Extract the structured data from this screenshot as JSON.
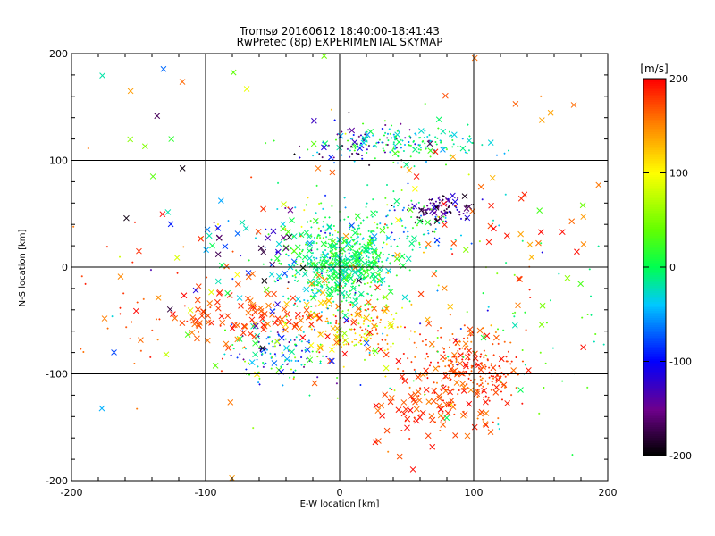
{
  "chart_data": {
    "type": "scatter",
    "title": "Tromsø 20160612 18:40:00-18:41:43",
    "subtitle": "RwPretec (8p) EXPERIMENTAL SKYMAP",
    "xlabel": "E-W location [km]",
    "ylabel": "N-S location [km]",
    "xlim": [
      -200,
      200
    ],
    "ylim": [
      -200,
      200
    ],
    "xticks": [
      "-200",
      "-100",
      "0",
      "100",
      "200"
    ],
    "yticks": [
      "-200",
      "-100",
      "0",
      "100",
      "200"
    ],
    "grid": true,
    "colorbar": {
      "label": "[m/s]",
      "min": -200,
      "max": 200,
      "ticks": [
        "200",
        "100",
        "0",
        "-100",
        "-200"
      ],
      "colormap": "rainbow (black-purple-blue-cyan-green-yellow-orange-red)"
    },
    "marker_types": [
      "x",
      "+"
    ],
    "clusters": [
      {
        "x": 0,
        "y": 5,
        "spread": [
          22,
          22
        ],
        "count": 520,
        "velocity": [
          -40,
          40
        ],
        "marker": "+"
      },
      {
        "x": 0,
        "y": 0,
        "spread": [
          14,
          14
        ],
        "count": 80,
        "velocity": [
          -30,
          20
        ],
        "marker": "x"
      },
      {
        "x": 75,
        "y": 55,
        "spread": [
          12,
          7
        ],
        "count": 110,
        "velocity": [
          -200,
          -110
        ],
        "marker": "+"
      },
      {
        "x": 50,
        "y": 115,
        "spread": [
          28,
          8
        ],
        "count": 170,
        "velocity": [
          -60,
          40
        ],
        "marker": "+"
      },
      {
        "x": 15,
        "y": 115,
        "spread": [
          20,
          10
        ],
        "count": 60,
        "velocity": [
          -200,
          -90
        ],
        "marker": "+"
      },
      {
        "x": 95,
        "y": -95,
        "spread": [
          22,
          18
        ],
        "count": 260,
        "velocity": [
          150,
          200
        ],
        "marker": "+"
      },
      {
        "x": 70,
        "y": -130,
        "spread": [
          25,
          22
        ],
        "count": 90,
        "velocity": [
          150,
          200
        ],
        "marker": "x"
      },
      {
        "x": 15,
        "y": -60,
        "spread": [
          15,
          12
        ],
        "count": 120,
        "velocity": [
          50,
          200
        ],
        "marker": "+"
      },
      {
        "x": -10,
        "y": -50,
        "spread": [
          18,
          15
        ],
        "count": 60,
        "velocity": [
          100,
          200
        ],
        "marker": "x"
      },
      {
        "x": -45,
        "y": -80,
        "spread": [
          18,
          14
        ],
        "count": 140,
        "velocity": [
          -160,
          60
        ],
        "marker": "+"
      },
      {
        "x": -75,
        "y": -45,
        "spread": [
          25,
          15
        ],
        "count": 90,
        "velocity": [
          150,
          200
        ],
        "marker": "x"
      },
      {
        "x": 45,
        "y": 40,
        "spread": [
          22,
          15
        ],
        "count": 80,
        "velocity": [
          -80,
          40
        ],
        "marker": "+"
      },
      {
        "x": -55,
        "y": 15,
        "spread": [
          30,
          20
        ],
        "count": 50,
        "velocity": [
          -200,
          10
        ],
        "marker": "x"
      },
      {
        "x": 15,
        "y": -10,
        "spread": [
          60,
          60
        ],
        "count": 160,
        "velocity": [
          -120,
          200
        ],
        "marker": "+"
      },
      {
        "x": 130,
        "y": 40,
        "spread": [
          45,
          60
        ],
        "count": 60,
        "velocity": [
          130,
          200
        ],
        "marker": "x"
      },
      {
        "x": -150,
        "y": -40,
        "spread": [
          30,
          40
        ],
        "count": 40,
        "velocity": [
          150,
          200
        ],
        "marker": "+"
      },
      {
        "x": -100,
        "y": -20,
        "spread": [
          60,
          80
        ],
        "count": 40,
        "velocity": [
          -200,
          200
        ],
        "marker": "x"
      },
      {
        "x": -150,
        "y": 140,
        "spread": [
          40,
          30
        ],
        "count": 12,
        "velocity": [
          -200,
          200
        ],
        "marker": "x"
      },
      {
        "x": 140,
        "y": -60,
        "spread": [
          40,
          50
        ],
        "count": 60,
        "velocity": [
          -30,
          50
        ],
        "marker": "+"
      }
    ]
  }
}
